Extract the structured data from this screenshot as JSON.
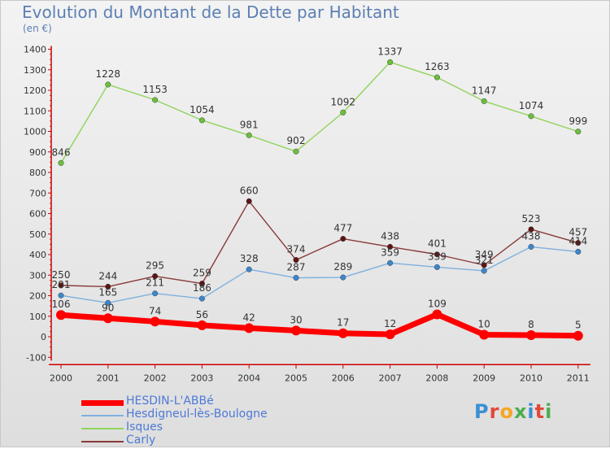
{
  "title": "Evolution du Montant de la Dette par Habitant",
  "unit": "(en €)",
  "brand": {
    "text": "Proxiti",
    "letter_colors": [
      "#3a8fd4",
      "#e2483a",
      "#f5a623",
      "#4cae4f",
      "#3a8fd4",
      "#e2483a",
      "#4cae4f"
    ]
  },
  "chart_data": {
    "type": "line",
    "title": "Evolution du Montant de la Dette par Habitant",
    "subtitle": "(en €)",
    "xlabel": "",
    "ylabel": "",
    "ylim": [
      -100,
      1400
    ],
    "y_ticks": [
      "1400",
      "1300",
      "1200",
      "1100",
      "1000",
      "900",
      "800",
      "700",
      "600",
      "500",
      "400",
      "300",
      "200",
      "100",
      "0",
      "-100"
    ],
    "x": [
      "2000",
      "2001",
      "2002",
      "2003",
      "2004",
      "2005",
      "2006",
      "2007",
      "2008",
      "2009",
      "2010",
      "2011"
    ],
    "grid": false,
    "legend_position": "bottom-left",
    "series": [
      {
        "name": "Isques",
        "color": "#8fd45a",
        "marker": "#6bbf3a",
        "values": [
          846,
          1228,
          1153,
          1054,
          981,
          902,
          1092,
          1337,
          1263,
          1147,
          1074,
          999
        ],
        "labels": [
          "846",
          "1228",
          "1153",
          "1054",
          "981",
          "902",
          "1092",
          "1337",
          "1263",
          "1147",
          "1074",
          "999"
        ]
      },
      {
        "name": "Carly",
        "color": "#8a3a3a",
        "marker": "#5e1414",
        "values": [
          250,
          244,
          295,
          259,
          660,
          374,
          477,
          438,
          401,
          349,
          523,
          457
        ],
        "labels": [
          "250",
          "244",
          "295",
          "259",
          "660",
          "374",
          "477",
          "438",
          "401",
          "349",
          "523",
          "457"
        ]
      },
      {
        "name": "Hesdigneul-lès-Boulogne",
        "color": "#7fb0dd",
        "marker": "#3a87cc",
        "values": [
          201,
          165,
          211,
          186,
          328,
          287,
          289,
          359,
          339,
          321,
          438,
          414
        ],
        "labels": [
          "201",
          "165",
          "211",
          "186",
          "328",
          "287",
          "289",
          "359",
          "339",
          "321",
          "438",
          "414"
        ]
      },
      {
        "name": "HESDIN-L'ABBé",
        "color": "#ff0000",
        "marker": "#ff0000",
        "values": [
          106,
          90,
          74,
          56,
          42,
          30,
          17,
          12,
          109,
          10,
          8,
          5
        ],
        "labels": [
          "106",
          "90",
          "74",
          "56",
          "42",
          "30",
          "17",
          "12",
          "109",
          "10",
          "8",
          "5"
        ]
      }
    ],
    "legend": [
      "HESDIN-L'ABBé",
      "Hesdigneul-lès-Boulogne",
      "Isques",
      "Carly"
    ]
  }
}
